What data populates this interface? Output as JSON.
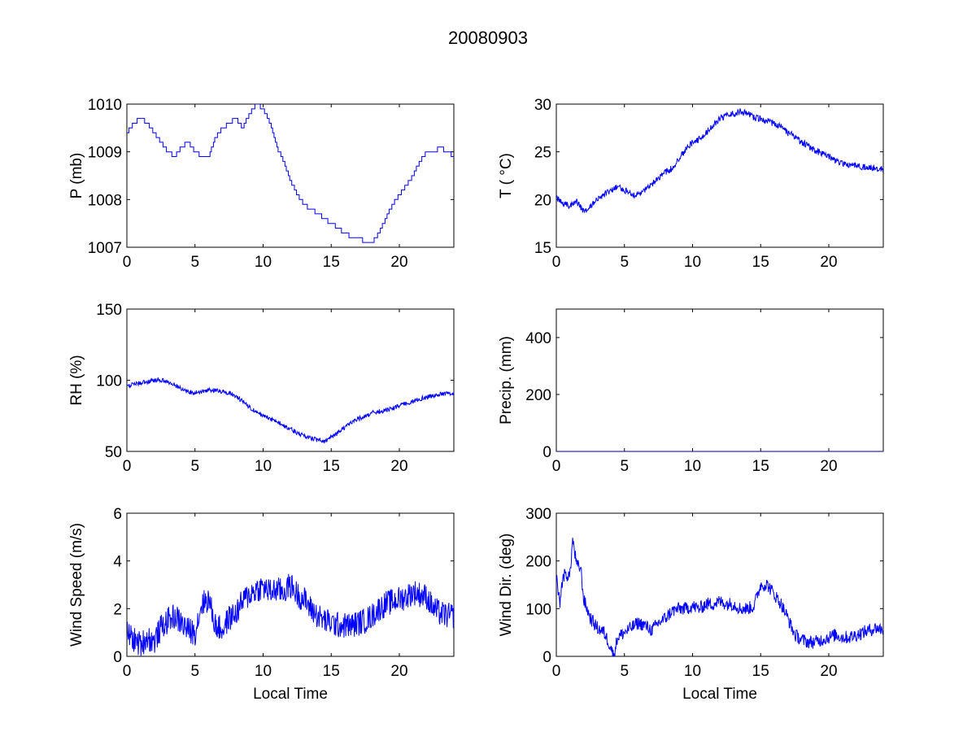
{
  "figure": {
    "title": "20080903",
    "color": "#0000ff"
  },
  "chart_data": [
    {
      "type": "line",
      "panel": "pressure",
      "title": "",
      "xlabel": "",
      "ylabel": "P (mb)",
      "xlim": [
        0,
        24
      ],
      "ylim": [
        1007,
        1010
      ],
      "xticks": [
        0,
        5,
        10,
        15,
        20
      ],
      "yticks": [
        1007,
        1008,
        1009,
        1010
      ],
      "xtick_labels": [
        "0",
        "5",
        "10",
        "15",
        "20"
      ],
      "ytick_labels": [
        "1007",
        "1008",
        "1009",
        "1010"
      ],
      "step": 0.1,
      "noise": 0,
      "grid": false,
      "series": [
        {
          "color": "#0000ff",
          "x": [
            0,
            0.5,
            1,
            1.5,
            2,
            2.5,
            3,
            3.5,
            4,
            4.5,
            5,
            5.5,
            6,
            6.5,
            7,
            7.5,
            8,
            8.5,
            9,
            9.5,
            10,
            10.5,
            11,
            11.5,
            12,
            12.5,
            13,
            13.5,
            14,
            14.5,
            15,
            15.5,
            16,
            16.5,
            17,
            17.5,
            18,
            18.5,
            19,
            19.5,
            20,
            20.5,
            21,
            21.5,
            22,
            22.5,
            23,
            23.5,
            24
          ],
          "y": [
            1009.4,
            1009.6,
            1009.7,
            1009.6,
            1009.4,
            1009.2,
            1009.0,
            1008.9,
            1009.1,
            1009.2,
            1009.0,
            1008.9,
            1008.9,
            1009.3,
            1009.5,
            1009.6,
            1009.7,
            1009.5,
            1009.8,
            1010.0,
            1009.9,
            1009.6,
            1009.1,
            1008.8,
            1008.4,
            1008.1,
            1007.9,
            1007.8,
            1007.7,
            1007.6,
            1007.5,
            1007.4,
            1007.3,
            1007.2,
            1007.2,
            1007.1,
            1007.1,
            1007.3,
            1007.6,
            1007.9,
            1008.1,
            1008.3,
            1008.5,
            1008.8,
            1009.0,
            1009.0,
            1009.1,
            1009.0,
            1008.9
          ]
        }
      ]
    },
    {
      "type": "line",
      "panel": "temperature",
      "title": "",
      "xlabel": "",
      "ylabel": "T ( °C)",
      "xlim": [
        0,
        24
      ],
      "ylim": [
        15,
        30
      ],
      "xticks": [
        0,
        5,
        10,
        15,
        20
      ],
      "yticks": [
        15,
        20,
        25,
        30
      ],
      "xtick_labels": [
        "0",
        "5",
        "10",
        "15",
        "20"
      ],
      "ytick_labels": [
        "15",
        "20",
        "25",
        "30"
      ],
      "noise": 0.35,
      "grid": false,
      "series": [
        {
          "color": "#0000ff",
          "x": [
            0,
            0.5,
            1,
            1.5,
            2,
            2.5,
            3,
            3.5,
            4,
            4.5,
            5,
            5.5,
            6,
            6.5,
            7,
            7.5,
            8,
            8.5,
            9,
            9.5,
            10,
            10.5,
            11,
            11.5,
            12,
            12.5,
            13,
            13.5,
            14,
            14.5,
            15,
            15.5,
            16,
            16.5,
            17,
            17.5,
            18,
            18.5,
            19,
            19.5,
            20,
            20.5,
            21,
            21.5,
            22,
            22.5,
            23,
            23.5,
            24
          ],
          "y": [
            20.2,
            19.6,
            19.3,
            19.8,
            18.7,
            19.3,
            20.0,
            20.5,
            21.0,
            21.3,
            21.0,
            20.6,
            20.4,
            21.0,
            21.6,
            22.2,
            22.8,
            23.3,
            24.2,
            25.3,
            26.0,
            26.3,
            27.0,
            27.8,
            28.5,
            28.8,
            29.0,
            29.2,
            29.0,
            28.6,
            28.4,
            28.2,
            28.0,
            27.6,
            27.0,
            26.6,
            26.0,
            25.6,
            25.2,
            24.8,
            24.5,
            24.1,
            23.8,
            23.6,
            23.5,
            23.4,
            23.3,
            23.3,
            23.2
          ]
        }
      ]
    },
    {
      "type": "line",
      "panel": "relative-humidity",
      "title": "",
      "xlabel": "",
      "ylabel": "RH (%)",
      "xlim": [
        0,
        24
      ],
      "ylim": [
        50,
        150
      ],
      "xticks": [
        0,
        5,
        10,
        15,
        20
      ],
      "yticks": [
        50,
        100,
        150
      ],
      "xtick_labels": [
        "0",
        "5",
        "10",
        "15",
        "20"
      ],
      "ytick_labels": [
        "50",
        "100",
        "150"
      ],
      "noise": 1.6,
      "grid": false,
      "series": [
        {
          "color": "#0000ff",
          "x": [
            0,
            0.5,
            1,
            1.5,
            2,
            2.5,
            3,
            3.5,
            4,
            4.5,
            5,
            5.5,
            6,
            6.5,
            7,
            7.5,
            8,
            8.5,
            9,
            9.5,
            10,
            10.5,
            11,
            11.5,
            12,
            12.5,
            13,
            13.5,
            14,
            14.5,
            15,
            15.5,
            16,
            16.5,
            17,
            17.5,
            18,
            18.5,
            19,
            19.5,
            20,
            20.5,
            21,
            21.5,
            22,
            22.5,
            23,
            23.5,
            24
          ],
          "y": [
            96,
            97,
            98,
            99,
            100,
            100,
            99,
            97,
            94,
            92,
            91,
            92,
            93,
            93,
            92,
            91,
            89,
            85,
            81,
            78,
            75,
            73,
            71,
            68,
            66,
            63,
            61,
            59,
            58,
            57,
            60,
            63,
            67,
            70,
            73,
            75,
            77,
            78,
            79,
            80,
            82,
            84,
            85,
            87,
            88,
            89,
            90,
            91,
            91
          ]
        }
      ]
    },
    {
      "type": "line",
      "panel": "precipitation",
      "title": "",
      "xlabel": "",
      "ylabel": "Precip. (mm)",
      "xlim": [
        0,
        24
      ],
      "ylim": [
        0,
        500
      ],
      "xticks": [
        0,
        5,
        10,
        15,
        20
      ],
      "yticks": [
        0,
        200,
        400
      ],
      "xtick_labels": [
        "0",
        "5",
        "10",
        "15",
        "20"
      ],
      "ytick_labels": [
        "0",
        "200",
        "400"
      ],
      "noise": 0,
      "grid": false,
      "series": [
        {
          "color": "#0000ff",
          "x": [
            0,
            24
          ],
          "y": [
            0,
            0
          ]
        }
      ]
    },
    {
      "type": "line",
      "panel": "wind-speed",
      "title": "",
      "xlabel": "Local Time",
      "ylabel": "Wind Speed (m/s)",
      "xlim": [
        0,
        24
      ],
      "ylim": [
        0,
        6
      ],
      "xticks": [
        0,
        5,
        10,
        15,
        20
      ],
      "yticks": [
        0,
        2,
        4,
        6
      ],
      "xtick_labels": [
        "0",
        "5",
        "10",
        "15",
        "20"
      ],
      "ytick_labels": [
        "0",
        "2",
        "4",
        "6"
      ],
      "noise": 0.55,
      "grid": false,
      "series": [
        {
          "color": "#0000ff",
          "x": [
            0,
            0.5,
            1,
            1.5,
            2,
            2.5,
            3,
            3.5,
            4,
            4.5,
            5,
            5.5,
            6,
            6.5,
            7,
            7.5,
            8,
            8.5,
            9,
            9.5,
            10,
            10.5,
            11,
            11.5,
            12,
            12.5,
            13,
            13.5,
            14,
            14.5,
            15,
            15.5,
            16,
            16.5,
            17,
            17.5,
            18,
            18.5,
            19,
            19.5,
            20,
            20.5,
            21,
            21.5,
            22,
            22.5,
            23,
            23.5,
            24
          ],
          "y": [
            1.0,
            0.7,
            0.5,
            0.8,
            0.6,
            1.2,
            1.5,
            1.7,
            1.4,
            1.1,
            1.0,
            2.2,
            2.4,
            1.3,
            1.1,
            1.6,
            1.8,
            2.3,
            2.6,
            2.8,
            2.9,
            2.7,
            2.8,
            2.7,
            3.0,
            2.6,
            2.4,
            2.0,
            1.7,
            1.5,
            1.4,
            1.3,
            1.3,
            1.3,
            1.4,
            1.5,
            1.7,
            2.0,
            2.2,
            2.3,
            2.4,
            2.5,
            2.7,
            2.6,
            2.5,
            2.0,
            1.8,
            1.7,
            1.7
          ]
        }
      ]
    },
    {
      "type": "line",
      "panel": "wind-direction",
      "title": "",
      "xlabel": "Local Time",
      "ylabel": "Wind Dir. (deg)",
      "xlim": [
        0,
        24
      ],
      "ylim": [
        0,
        300
      ],
      "xticks": [
        0,
        5,
        10,
        15,
        20
      ],
      "yticks": [
        0,
        100,
        200,
        300
      ],
      "xtick_labels": [
        "0",
        "5",
        "10",
        "15",
        "20"
      ],
      "ytick_labels": [
        "0",
        "100",
        "200",
        "300"
      ],
      "noise": 14,
      "grid": false,
      "series": [
        {
          "color": "#0000ff",
          "x": [
            0,
            0.25,
            0.5,
            1.0,
            1.2,
            1.5,
            1.8,
            2.0,
            2.5,
            3.0,
            3.5,
            4.0,
            4.2,
            4.5,
            5.0,
            5.5,
            6.0,
            6.5,
            7.0,
            7.5,
            8.0,
            8.5,
            9.0,
            9.5,
            10.0,
            10.5,
            11.0,
            11.5,
            12.0,
            12.5,
            13.0,
            13.5,
            14.0,
            14.5,
            15.0,
            15.5,
            16.0,
            16.5,
            17.0,
            17.5,
            18.0,
            18.5,
            19.0,
            19.5,
            20.0,
            20.5,
            21.0,
            21.5,
            22.0,
            22.5,
            23.0,
            23.5,
            24.0
          ],
          "y": [
            170,
            110,
            170,
            170,
            245,
            190,
            185,
            120,
            80,
            60,
            50,
            20,
            0,
            40,
            50,
            60,
            70,
            65,
            55,
            70,
            80,
            95,
            100,
            100,
            105,
            100,
            110,
            110,
            115,
            110,
            110,
            100,
            100,
            105,
            150,
            150,
            130,
            110,
            80,
            45,
            35,
            30,
            30,
            35,
            40,
            45,
            40,
            40,
            45,
            50,
            55,
            60,
            55
          ]
        }
      ]
    }
  ]
}
